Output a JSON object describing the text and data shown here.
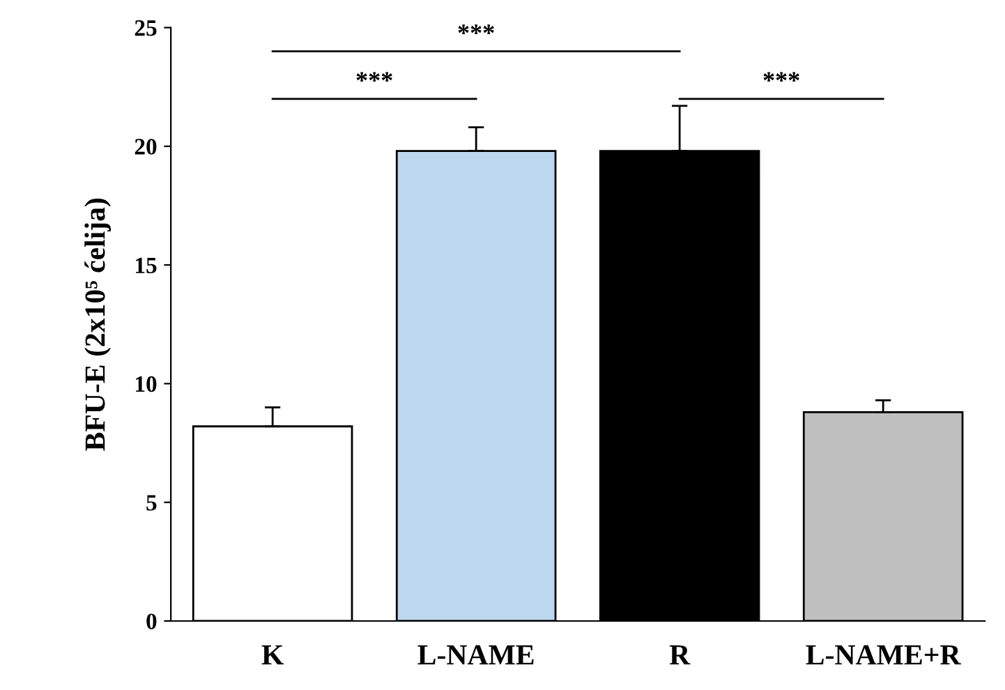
{
  "chart_data": {
    "type": "bar",
    "ylabel": "BFU-E (2x10⁵ ćelija)",
    "categories": [
      "K",
      "L-NAME",
      "R",
      "L-NAME+R"
    ],
    "values": [
      8.2,
      19.8,
      19.8,
      8.8
    ],
    "errors": [
      0.8,
      1.0,
      1.9,
      0.5
    ],
    "colors": [
      "#ffffff",
      "#bdd7ee",
      "#000000",
      "#bfbfbf"
    ],
    "ylim": [
      0,
      25
    ],
    "yticks": [
      0,
      5,
      10,
      15,
      20,
      25
    ],
    "annotations": [
      "***",
      "***",
      "***"
    ],
    "grid": false,
    "legend": false
  }
}
